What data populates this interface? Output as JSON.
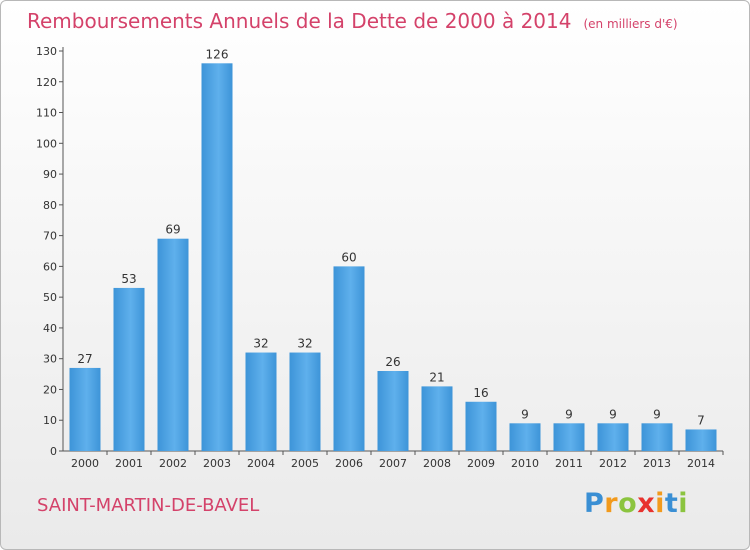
{
  "chart_data": {
    "type": "bar",
    "title": "Remboursements Annuels de la Dette de 2000 à 2014",
    "unit_note": "(en milliers d'€)",
    "xlabel": "",
    "ylabel": "",
    "categories": [
      "2000",
      "2001",
      "2002",
      "2003",
      "2004",
      "2005",
      "2006",
      "2007",
      "2008",
      "2009",
      "2010",
      "2011",
      "2012",
      "2013",
      "2014"
    ],
    "values": [
      27,
      53,
      69,
      126,
      32,
      32,
      60,
      26,
      21,
      16,
      9,
      9,
      9,
      9,
      7
    ],
    "ylim": [
      0,
      130
    ],
    "yticks": [
      0,
      10,
      20,
      30,
      40,
      50,
      60,
      70,
      80,
      90,
      100,
      110,
      120,
      130
    ],
    "grid": false,
    "bar_color": "#3d94d8",
    "bar_highlight": "#5fb0ec"
  },
  "commune": "SAINT-MARTIN-DE-BAVEL",
  "logo": {
    "letters": [
      "P",
      "r",
      "o",
      "x",
      "i",
      "t",
      "i"
    ],
    "colors": [
      "#3a8fd4",
      "#f29a1c",
      "#8bc43f",
      "#e8322e",
      "#f29a1c",
      "#3a8fd4",
      "#8bc43f"
    ]
  },
  "colors": {
    "title": "#d4426a",
    "axis": "#555555"
  }
}
